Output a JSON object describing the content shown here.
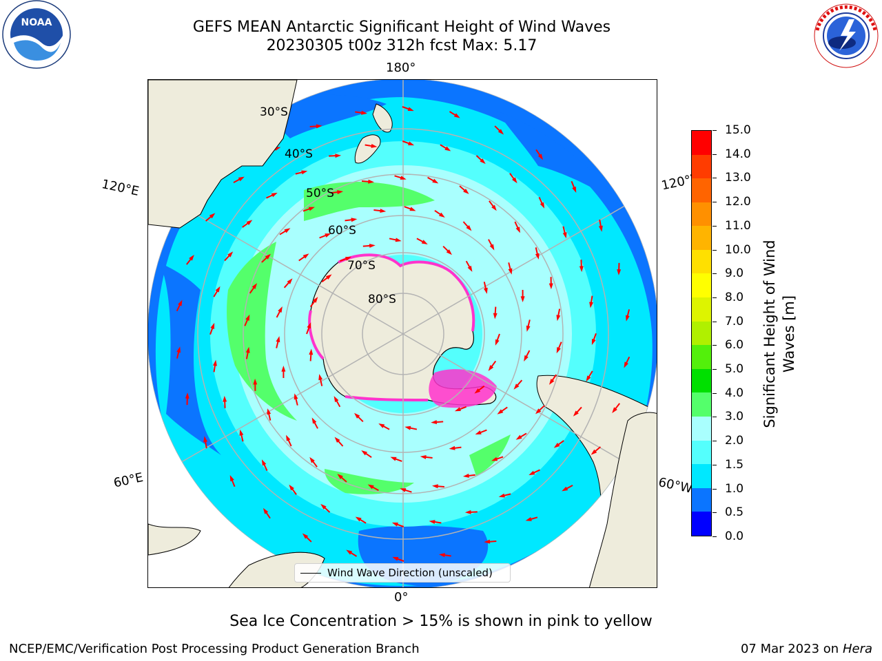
{
  "header": {
    "title_line1": "GEFS MEAN Antarctic Significant Height of Wind Waves",
    "title_line2": "20230305 t00z 312h fcst   Max: 5.17"
  },
  "logos": {
    "noaa": {
      "text": "NOAA",
      "icon": "noaa-logo-icon",
      "ring_text": "NATIONAL OCEANIC AND ATMOSPHERIC ADMINISTRATION · U.S. DEPARTMENT OF COMMERCE"
    },
    "nws": {
      "icon": "nws-logo-icon",
      "ring_text": "NATIONAL WEATHER SERVICE"
    }
  },
  "map": {
    "projection": "south-polar-stereographic",
    "longitude_labels": {
      "top": "180°",
      "bottom": "0°",
      "upper_left": "120°E",
      "lower_left": "60°E",
      "upper_right": "120°W",
      "lower_right": "60°W"
    },
    "latitude_labels": [
      "30°S",
      "40°S",
      "50°S",
      "60°S",
      "70°S",
      "80°S"
    ],
    "legend_label": "Wind Wave Direction (unscaled)",
    "colors": {
      "land": "#eeecdc",
      "grid": "#b3b3b3",
      "arrow": "#ff0000",
      "sea_ice": "#ff33cc"
    }
  },
  "colorbar": {
    "label": "Significant Height of Wind Waves [m]",
    "label_line1": "Significant Height of Wind",
    "label_line2": "Waves [m]",
    "ticks": [
      "0.0",
      "0.5",
      "1.0",
      "1.5",
      "2.0",
      "3.0",
      "4.0",
      "5.0",
      "6.0",
      "7.0",
      "8.0",
      "9.0",
      "10.0",
      "11.0",
      "12.0",
      "13.0",
      "14.0",
      "15.0"
    ],
    "colors": [
      "#0000ff",
      "#0b75ff",
      "#00e8ff",
      "#54fffd",
      "#a9fffe",
      "#54ff6b",
      "#00e000",
      "#53f00b",
      "#b0f000",
      "#ddf400",
      "#ffff00",
      "#ffe000",
      "#ffb400",
      "#ff9000",
      "#ff6400",
      "#ff3c00",
      "#ff0000"
    ]
  },
  "caption": "Sea Ice Concentration > 15% is shown in pink to yellow",
  "footer": {
    "left": "NCEP/EMC/Verification Post Processing Product Generation Branch",
    "right_date": "07 Mar 2023 on",
    "right_host": "Hera"
  }
}
